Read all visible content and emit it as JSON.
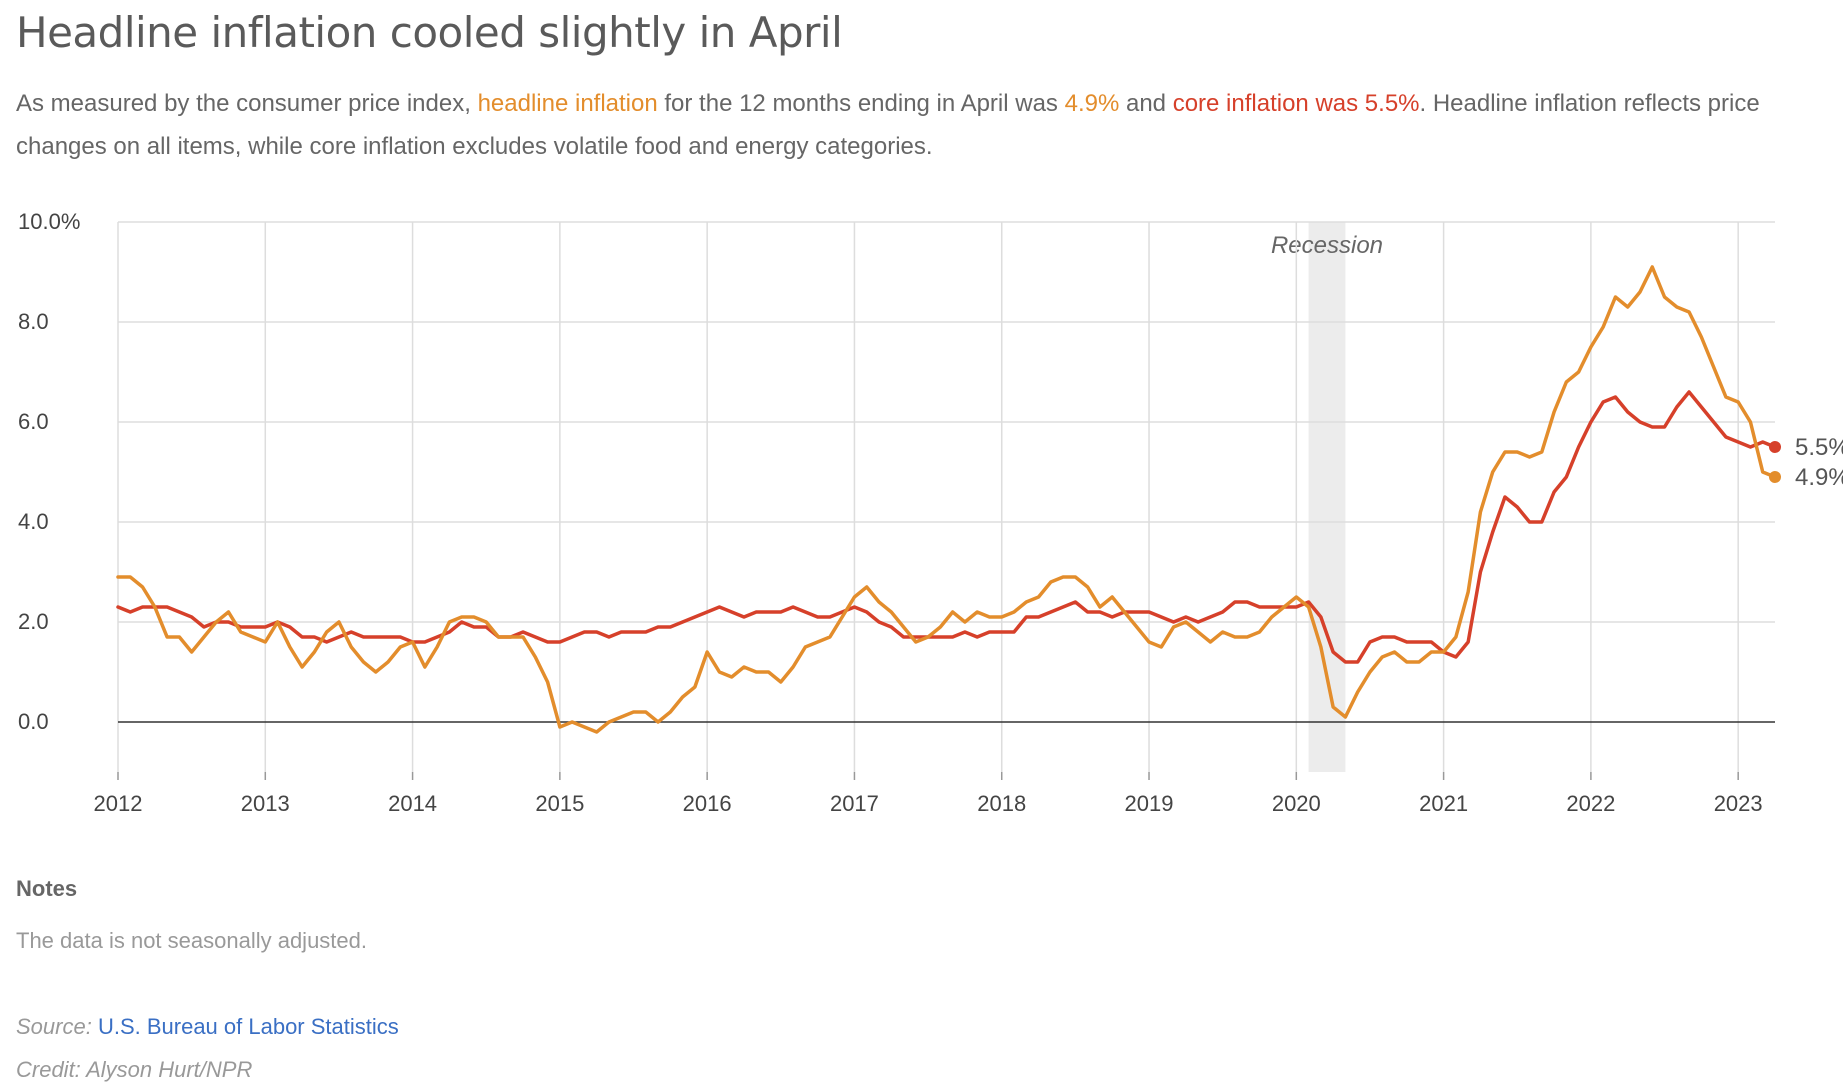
{
  "header": {
    "title": "Headline inflation cooled slightly in April",
    "subtitle": {
      "part1": "As measured by the consumer price index, ",
      "headline_link": "headline inflation",
      "part2": " for the 12 months ending in April was ",
      "headline_value": "4.9%",
      "part3": " and ",
      "core_phrase": "core inflation was 5.5%",
      "part4": ". Headline inflation reflects price changes on all items, while core inflation excludes volatile food and energy categories."
    }
  },
  "colors": {
    "headline": "#e38d2c",
    "core": "#d6402a",
    "grid": "#dddddd",
    "zero_line": "#333333",
    "recession": "#ececec"
  },
  "chart_data": {
    "type": "line",
    "x_start": "2012-01",
    "x_interval": "monthly",
    "xlim": [
      "2012-01",
      "2023-04"
    ],
    "ylim": [
      -1,
      10
    ],
    "y_ticks": [
      "10.0%",
      "8.0",
      "6.0",
      "4.0",
      "2.0",
      "0.0"
    ],
    "x_ticks": [
      "2012",
      "2013",
      "2014",
      "2015",
      "2016",
      "2017",
      "2018",
      "2019",
      "2020",
      "2021",
      "2022",
      "2023"
    ],
    "grid": true,
    "recession": {
      "label": "Recession",
      "start": "2020-02",
      "end": "2020-04"
    },
    "series": [
      {
        "key": "core",
        "color": "#d6402a",
        "end_label": "5.5%",
        "values": [
          2.3,
          2.2,
          2.3,
          2.3,
          2.3,
          2.2,
          2.1,
          1.9,
          2.0,
          2.0,
          1.9,
          1.9,
          1.9,
          2.0,
          1.9,
          1.7,
          1.7,
          1.6,
          1.7,
          1.8,
          1.7,
          1.7,
          1.7,
          1.7,
          1.6,
          1.6,
          1.7,
          1.8,
          2.0,
          1.9,
          1.9,
          1.7,
          1.7,
          1.8,
          1.7,
          1.6,
          1.6,
          1.7,
          1.8,
          1.8,
          1.7,
          1.8,
          1.8,
          1.8,
          1.9,
          1.9,
          2.0,
          2.1,
          2.2,
          2.3,
          2.2,
          2.1,
          2.2,
          2.2,
          2.2,
          2.3,
          2.2,
          2.1,
          2.1,
          2.2,
          2.3,
          2.2,
          2.0,
          1.9,
          1.7,
          1.7,
          1.7,
          1.7,
          1.7,
          1.8,
          1.7,
          1.8,
          1.8,
          1.8,
          2.1,
          2.1,
          2.2,
          2.3,
          2.4,
          2.2,
          2.2,
          2.1,
          2.2,
          2.2,
          2.2,
          2.1,
          2.0,
          2.1,
          2.0,
          2.1,
          2.2,
          2.4,
          2.4,
          2.3,
          2.3,
          2.3,
          2.3,
          2.4,
          2.1,
          1.4,
          1.2,
          1.2,
          1.6,
          1.7,
          1.7,
          1.6,
          1.6,
          1.6,
          1.4,
          1.3,
          1.6,
          3.0,
          3.8,
          4.5,
          4.3,
          4.0,
          4.0,
          4.6,
          4.9,
          5.5,
          6.0,
          6.4,
          6.5,
          6.2,
          6.0,
          5.9,
          5.9,
          6.3,
          6.6,
          6.3,
          6.0,
          5.7,
          5.6,
          5.5,
          5.6,
          5.5
        ]
      },
      {
        "key": "headline",
        "color": "#e38d2c",
        "end_label": "4.9%",
        "values": [
          2.9,
          2.9,
          2.7,
          2.3,
          1.7,
          1.7,
          1.4,
          1.7,
          2.0,
          2.2,
          1.8,
          1.7,
          1.6,
          2.0,
          1.5,
          1.1,
          1.4,
          1.8,
          2.0,
          1.5,
          1.2,
          1.0,
          1.2,
          1.5,
          1.6,
          1.1,
          1.5,
          2.0,
          2.1,
          2.1,
          2.0,
          1.7,
          1.7,
          1.7,
          1.3,
          0.8,
          -0.1,
          0.0,
          -0.1,
          -0.2,
          0.0,
          0.1,
          0.2,
          0.2,
          0.0,
          0.2,
          0.5,
          0.7,
          1.4,
          1.0,
          0.9,
          1.1,
          1.0,
          1.0,
          0.8,
          1.1,
          1.5,
          1.6,
          1.7,
          2.1,
          2.5,
          2.7,
          2.4,
          2.2,
          1.9,
          1.6,
          1.7,
          1.9,
          2.2,
          2.0,
          2.2,
          2.1,
          2.1,
          2.2,
          2.4,
          2.5,
          2.8,
          2.9,
          2.9,
          2.7,
          2.3,
          2.5,
          2.2,
          1.9,
          1.6,
          1.5,
          1.9,
          2.0,
          1.8,
          1.6,
          1.8,
          1.7,
          1.7,
          1.8,
          2.1,
          2.3,
          2.5,
          2.3,
          1.5,
          0.3,
          0.1,
          0.6,
          1.0,
          1.3,
          1.4,
          1.2,
          1.2,
          1.4,
          1.4,
          1.7,
          2.6,
          4.2,
          5.0,
          5.4,
          5.4,
          5.3,
          5.4,
          6.2,
          6.8,
          7.0,
          7.5,
          7.9,
          8.5,
          8.3,
          8.6,
          9.1,
          8.5,
          8.3,
          8.2,
          7.7,
          7.1,
          6.5,
          6.4,
          6.0,
          5.0,
          4.9
        ]
      }
    ]
  },
  "notes": {
    "heading": "Notes",
    "text": "The data is not seasonally adjusted."
  },
  "source": {
    "label": "Source:",
    "link_text": "U.S. Bureau of Labor Statistics"
  },
  "credit": "Credit: Alyson Hurt/NPR"
}
